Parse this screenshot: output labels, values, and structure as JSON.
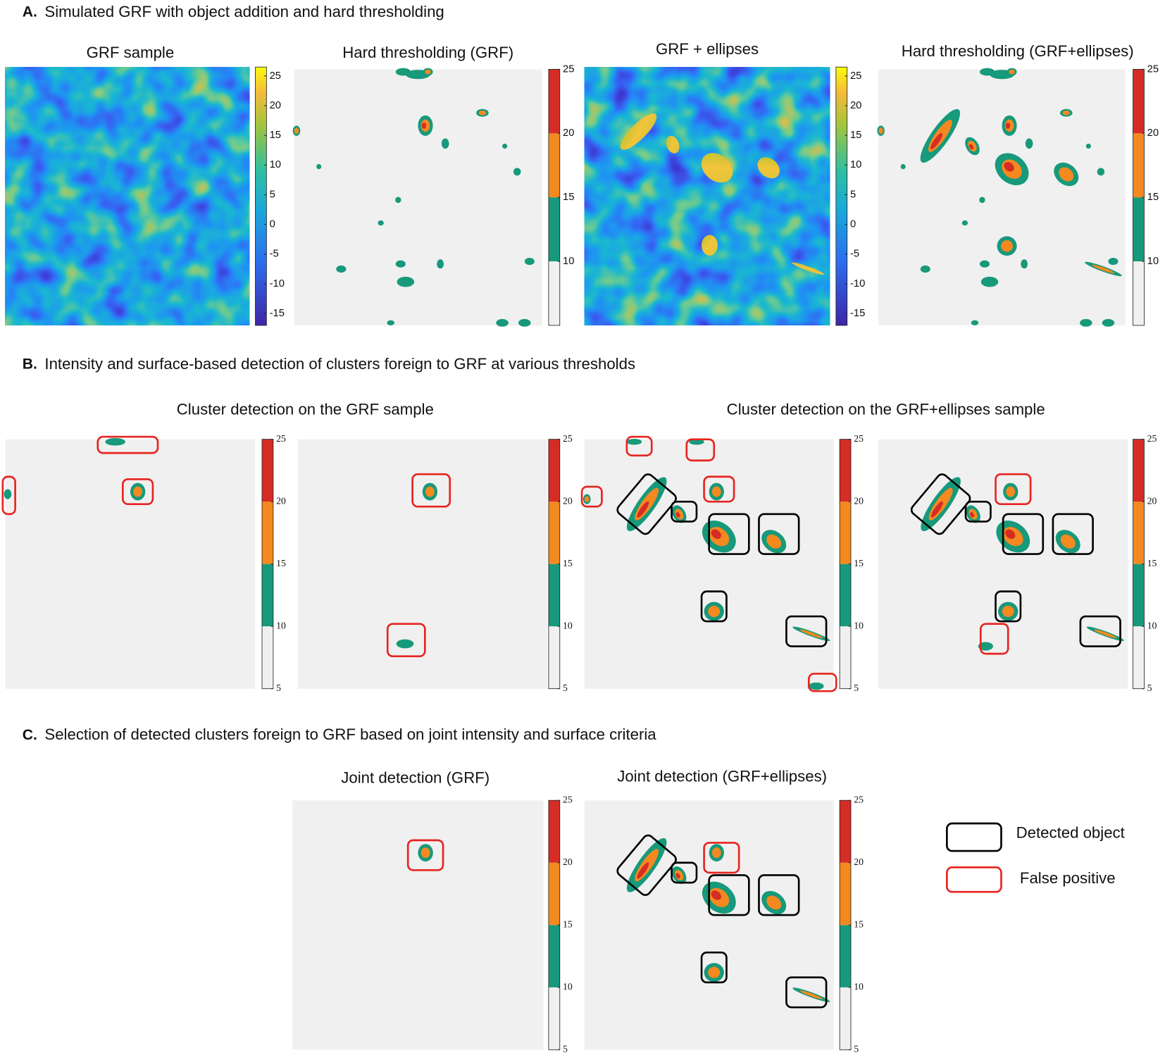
{
  "sections": [
    {
      "label": "A.",
      "title": "Simulated GRF with object addition and hard thresholding",
      "panels": [
        {
          "title": "GRF sample",
          "colorbar": {
            "scale": "continuous",
            "lim": [
              -17,
              26.5
            ],
            "ticks": [
              25,
              20,
              15,
              10,
              5,
              0,
              -5,
              -10,
              -15
            ]
          }
        },
        {
          "title": "Hard thresholding (GRF)",
          "colorbar": {
            "scale": "discrete",
            "lim": [
              5,
              25
            ],
            "ticks": [
              25,
              20,
              15,
              10
            ],
            "colors": [
              "#f0f0f0",
              "#17997b",
              "#f4891f",
              "#d62c26"
            ]
          }
        },
        {
          "title": "GRF + ellipses",
          "colorbar": {
            "scale": "continuous",
            "lim": [
              -17,
              26.5
            ],
            "ticks": [
              25,
              20,
              15,
              10,
              5,
              0,
              -5,
              -10,
              -15
            ]
          }
        },
        {
          "title": "Hard thresholding (GRF+ellipses)",
          "colorbar": {
            "scale": "discrete",
            "lim": [
              5,
              25
            ],
            "ticks": [
              25,
              20,
              15,
              10
            ],
            "colors": [
              "#f0f0f0",
              "#17997b",
              "#f4891f",
              "#d62c26"
            ]
          }
        }
      ]
    },
    {
      "label": "B.",
      "title": "Intensity and surface-based detection of clusters foreign to GRF at various thresholds",
      "groups": [
        "Cluster detection on the GRF sample",
        "Cluster detection on the GRF+ellipses sample"
      ],
      "panels": [
        {
          "colorbar": {
            "scale": "discrete",
            "lim": [
              5,
              25
            ],
            "ticks": [
              25,
              20,
              15,
              10,
              5
            ],
            "colors": [
              "#f0f0f0",
              "#17997b",
              "#f4891f",
              "#d62c26"
            ]
          }
        },
        {
          "colorbar": {
            "scale": "discrete",
            "lim": [
              5,
              25
            ],
            "ticks": [
              25,
              20,
              15,
              10,
              5
            ],
            "colors": [
              "#f0f0f0",
              "#17997b",
              "#f4891f",
              "#d62c26"
            ]
          }
        },
        {
          "colorbar": {
            "scale": "discrete",
            "lim": [
              5,
              25
            ],
            "ticks": [
              25,
              20,
              15,
              10,
              5
            ],
            "colors": [
              "#f0f0f0",
              "#17997b",
              "#f4891f",
              "#d62c26"
            ]
          }
        },
        {
          "colorbar": {
            "scale": "discrete",
            "lim": [
              5,
              25
            ],
            "ticks": [
              25,
              20,
              15,
              10,
              5
            ],
            "colors": [
              "#f0f0f0",
              "#17997b",
              "#f4891f",
              "#d62c26"
            ]
          }
        }
      ]
    },
    {
      "label": "C.",
      "title": "Selection of detected clusters foreign to GRF based on joint intensity and surface criteria",
      "panels": [
        {
          "title": "Joint detection (GRF)",
          "colorbar": {
            "scale": "discrete",
            "lim": [
              5,
              25
            ],
            "ticks": [
              25,
              20,
              15,
              10,
              5
            ],
            "colors": [
              "#f0f0f0",
              "#17997b",
              "#f4891f",
              "#d62c26"
            ]
          }
        },
        {
          "title": "Joint detection (GRF+ellipses)",
          "colorbar": {
            "scale": "discrete",
            "lim": [
              5,
              25
            ],
            "ticks": [
              25,
              20,
              15,
              10,
              5
            ],
            "colors": [
              "#f0f0f0",
              "#17997b",
              "#f4891f",
              "#d62c26"
            ]
          }
        }
      ]
    }
  ],
  "legend": [
    {
      "label": "Detected object",
      "color": "#000000"
    },
    {
      "label": "False positive",
      "color": "#e8231f"
    }
  ]
}
